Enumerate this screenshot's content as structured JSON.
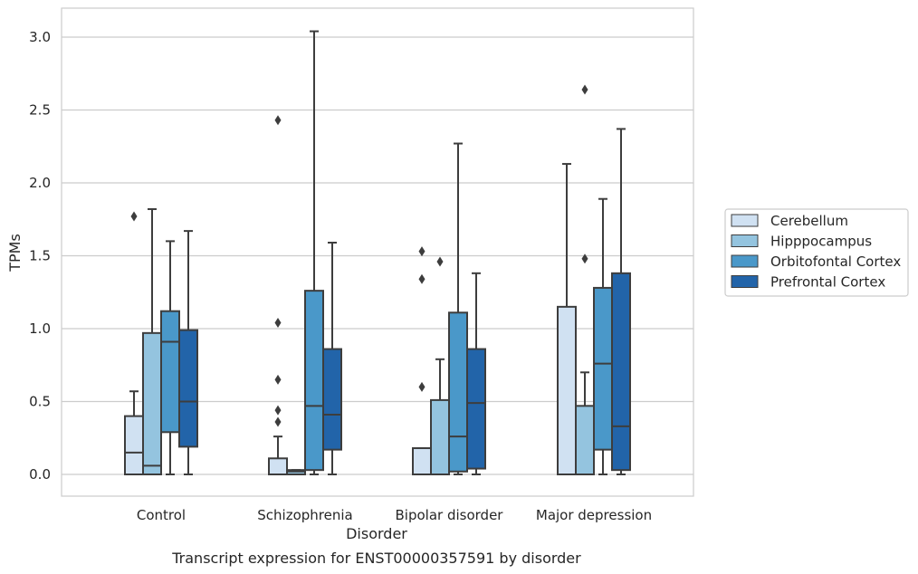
{
  "caption": "Transcript expression for ENST00000357591 by disorder",
  "chart_data": {
    "type": "box",
    "xlabel": "Disorder",
    "ylabel": "TPMs",
    "ylim": [
      -0.15,
      3.2
    ],
    "yticks": [
      "0.0",
      "0.5",
      "1.0",
      "1.5",
      "2.0",
      "2.5",
      "3.0"
    ],
    "categories": [
      "Control",
      "Schizophrenia",
      "Bipolar disorder",
      "Major depression"
    ],
    "grid": "horizontal",
    "legend_position": "right",
    "series": [
      {
        "name": "Cerebellum",
        "color": "#d0e1f2",
        "boxes": [
          {
            "whislo": 0.0,
            "q1": 0.0,
            "med": 0.15,
            "q3": 0.4,
            "whishi": 0.57,
            "fliers": [
              1.77
            ]
          },
          {
            "whislo": 0.0,
            "q1": 0.0,
            "med": 0.0,
            "q3": 0.11,
            "whishi": 0.26,
            "fliers": [
              2.43,
              1.04,
              0.65,
              0.44,
              0.36
            ]
          },
          {
            "whislo": 0.0,
            "q1": 0.0,
            "med": 0.0,
            "q3": 0.18,
            "whishi": 0.18,
            "fliers": [
              1.53,
              1.34,
              0.6
            ]
          },
          {
            "whislo": 0.0,
            "q1": 0.0,
            "med": 0.0,
            "q3": 1.15,
            "whishi": 2.13,
            "fliers": []
          }
        ]
      },
      {
        "name": "Hipppocampus",
        "color": "#94c4df",
        "boxes": [
          {
            "whislo": 0.0,
            "q1": 0.0,
            "med": 0.06,
            "q3": 0.97,
            "whishi": 1.82,
            "fliers": []
          },
          {
            "whislo": 0.0,
            "q1": 0.0,
            "med": 0.02,
            "q3": 0.03,
            "whishi": 0.03,
            "fliers": []
          },
          {
            "whislo": 0.0,
            "q1": 0.0,
            "med": 0.0,
            "q3": 0.51,
            "whishi": 0.79,
            "fliers": [
              1.46
            ]
          },
          {
            "whislo": 0.0,
            "q1": 0.0,
            "med": 0.0,
            "q3": 0.47,
            "whishi": 0.7,
            "fliers": [
              2.64,
              1.48
            ]
          }
        ]
      },
      {
        "name": "Orbitofontal Cortex",
        "color": "#4a98c9",
        "boxes": [
          {
            "whislo": 0.0,
            "q1": 0.29,
            "med": 0.91,
            "q3": 1.12,
            "whishi": 1.6,
            "fliers": []
          },
          {
            "whislo": 0.0,
            "q1": 0.03,
            "med": 0.47,
            "q3": 1.26,
            "whishi": 3.04,
            "fliers": []
          },
          {
            "whislo": 0.0,
            "q1": 0.02,
            "med": 0.26,
            "q3": 1.11,
            "whishi": 2.27,
            "fliers": []
          },
          {
            "whislo": 0.0,
            "q1": 0.17,
            "med": 0.76,
            "q3": 1.28,
            "whishi": 1.89,
            "fliers": []
          }
        ]
      },
      {
        "name": "Prefrontal Cortex",
        "color": "#2264a9",
        "boxes": [
          {
            "whislo": 0.0,
            "q1": 0.19,
            "med": 0.5,
            "q3": 0.99,
            "whishi": 1.67,
            "fliers": []
          },
          {
            "whislo": 0.0,
            "q1": 0.17,
            "med": 0.41,
            "q3": 0.86,
            "whishi": 1.59,
            "fliers": []
          },
          {
            "whislo": 0.0,
            "q1": 0.04,
            "med": 0.49,
            "q3": 0.86,
            "whishi": 1.38,
            "fliers": []
          },
          {
            "whislo": 0.0,
            "q1": 0.03,
            "med": 0.33,
            "q3": 1.38,
            "whishi": 2.37,
            "fliers": []
          }
        ]
      }
    ]
  }
}
